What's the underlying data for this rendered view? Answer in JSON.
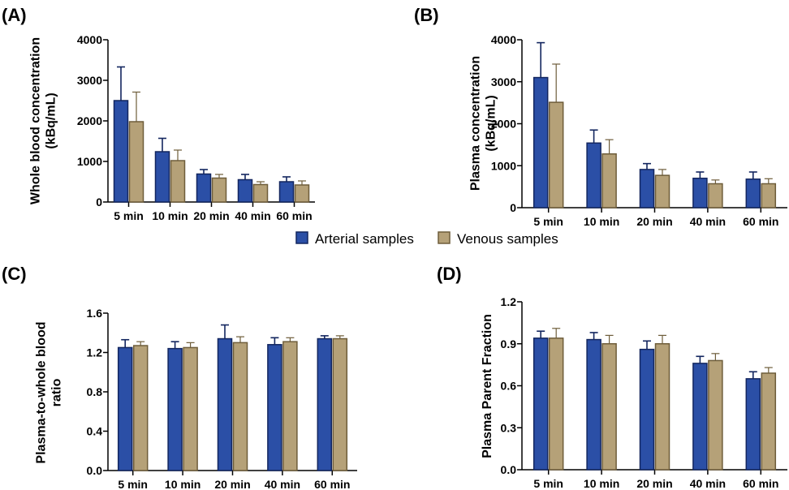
{
  "legend": {
    "items": [
      {
        "label": "Arterial samples",
        "fill": "#2b4fa6",
        "stroke": "#13265f"
      },
      {
        "label": "Venous samples",
        "fill": "#b5a178",
        "stroke": "#6e5d3a"
      }
    ]
  },
  "chart_data": [
    {
      "type": "bar",
      "panel": "(A)",
      "title": "",
      "xlabel": "",
      "ylabel": [
        "Whole blood concentration",
        "(kBq/mL)"
      ],
      "categories": [
        "5 min",
        "10 min",
        "20 min",
        "40 min",
        "60 min"
      ],
      "ylim": [
        0,
        4000
      ],
      "yticks": [
        0,
        1000,
        2000,
        3000,
        4000
      ],
      "series": [
        {
          "name": "Arterial samples",
          "values": [
            2500,
            1240,
            690,
            550,
            500
          ],
          "errors": [
            830,
            330,
            110,
            130,
            120
          ]
        },
        {
          "name": "Venous samples",
          "values": [
            1980,
            1020,
            590,
            430,
            420
          ],
          "errors": [
            730,
            260,
            90,
            70,
            100
          ]
        }
      ]
    },
    {
      "type": "bar",
      "panel": "(B)",
      "title": "",
      "xlabel": "",
      "ylabel": [
        "Plasma concentration",
        "(kBq/mL)"
      ],
      "categories": [
        "5 min",
        "10 min",
        "20 min",
        "40 min",
        "60 min"
      ],
      "ylim": [
        0,
        4000
      ],
      "yticks": [
        0,
        1000,
        2000,
        3000,
        4000
      ],
      "series": [
        {
          "name": "Arterial samples",
          "values": [
            3100,
            1540,
            910,
            700,
            680
          ],
          "errors": [
            830,
            310,
            140,
            150,
            170
          ]
        },
        {
          "name": "Venous samples",
          "values": [
            2510,
            1280,
            770,
            570,
            570
          ],
          "errors": [
            910,
            340,
            140,
            90,
            120
          ]
        }
      ]
    },
    {
      "type": "bar",
      "panel": "(C)",
      "title": "",
      "xlabel": "",
      "ylabel": [
        "Plasma-to-whole blood",
        "ratio"
      ],
      "categories": [
        "5 min",
        "10 min",
        "20 min",
        "40 min",
        "60 min"
      ],
      "ylim": [
        0,
        1.6
      ],
      "yticks": [
        0,
        0.4,
        0.8,
        1.2,
        1.6
      ],
      "decimals": 1,
      "series": [
        {
          "name": "Arterial samples",
          "values": [
            1.25,
            1.24,
            1.34,
            1.28,
            1.34
          ],
          "errors": [
            0.08,
            0.07,
            0.14,
            0.07,
            0.03
          ]
        },
        {
          "name": "Venous samples",
          "values": [
            1.27,
            1.25,
            1.3,
            1.31,
            1.34
          ],
          "errors": [
            0.04,
            0.05,
            0.06,
            0.04,
            0.03
          ]
        }
      ]
    },
    {
      "type": "bar",
      "panel": "(D)",
      "title": "",
      "xlabel": "",
      "ylabel": [
        "Plasma Parent Fraction"
      ],
      "categories": [
        "5 min",
        "10 min",
        "20 min",
        "40 min",
        "60 min"
      ],
      "ylim": [
        0,
        1.2
      ],
      "yticks": [
        0,
        0.3,
        0.6,
        0.9,
        1.2
      ],
      "decimals": 1,
      "series": [
        {
          "name": "Arterial samples",
          "values": [
            0.94,
            0.93,
            0.86,
            0.76,
            0.65
          ],
          "errors": [
            0.05,
            0.05,
            0.06,
            0.05,
            0.05
          ]
        },
        {
          "name": "Venous samples",
          "values": [
            0.94,
            0.9,
            0.9,
            0.78,
            0.69
          ],
          "errors": [
            0.07,
            0.06,
            0.06,
            0.05,
            0.04
          ]
        }
      ]
    }
  ]
}
